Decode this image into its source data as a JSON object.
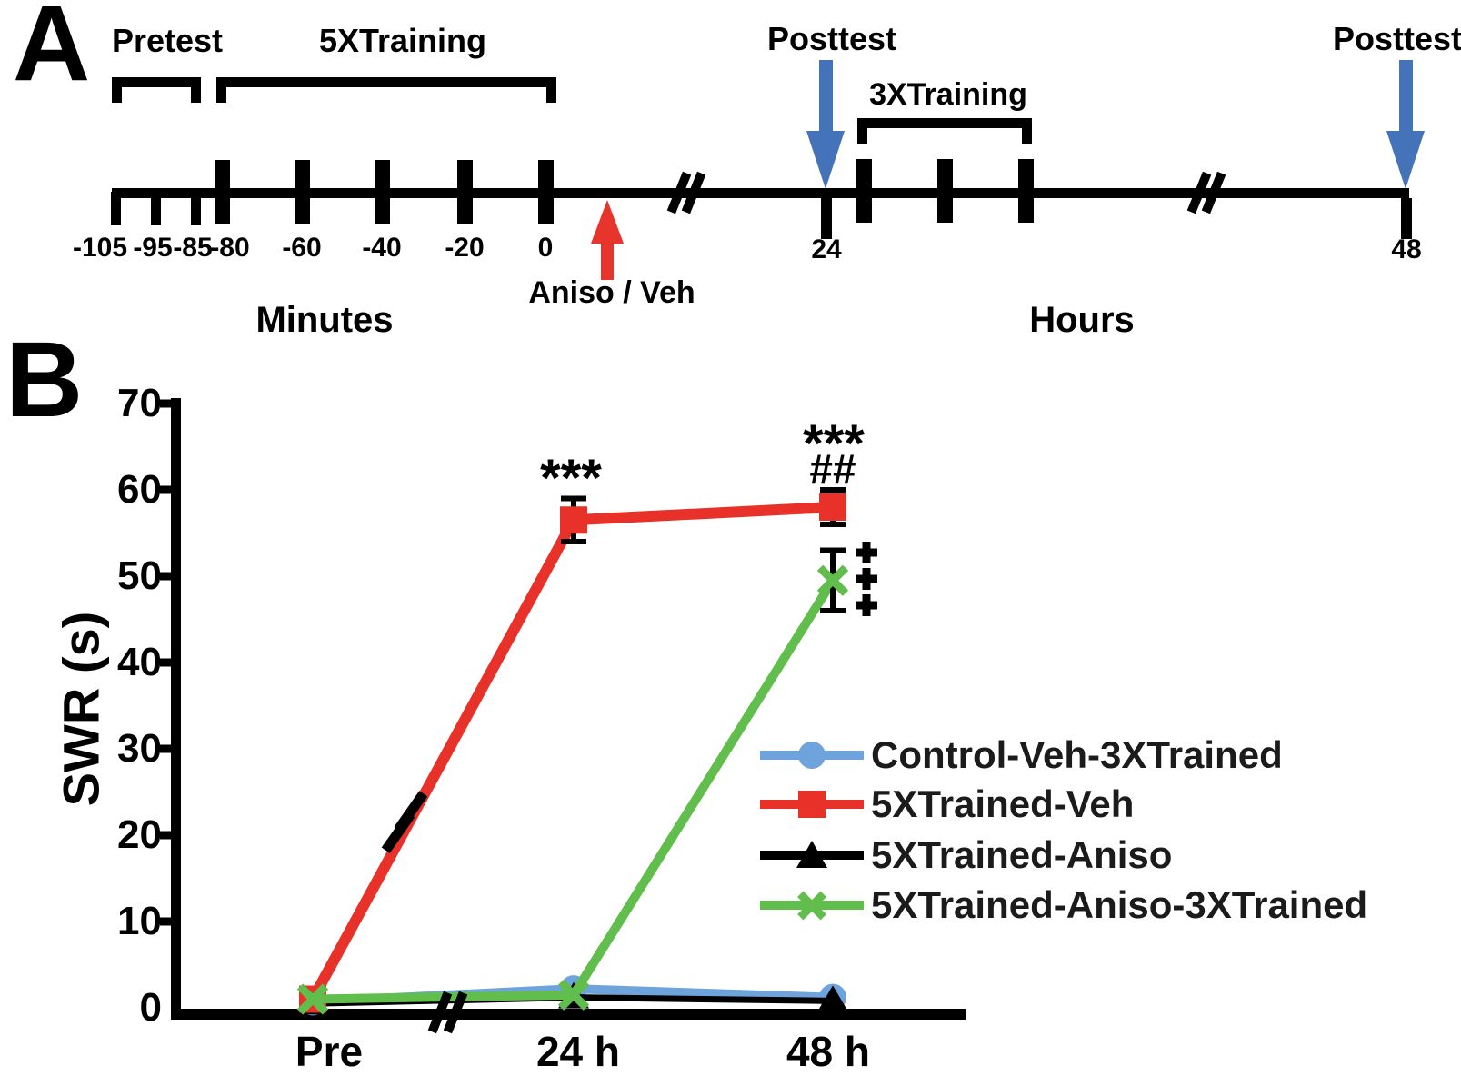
{
  "figure": {
    "panel_a_letter": "A",
    "panel_b_letter": "B"
  },
  "panel_a": {
    "pretest_label": "Pretest",
    "training5x_label": "5XTraining",
    "posttest24_label": "Posttest",
    "posttest48_label": "Posttest",
    "training3x_label": "3XTraining",
    "aniso_label": "Aniso / Veh",
    "minutes_label": "Minutes",
    "hours_label": "Hours",
    "minute_ticks": [
      "-105",
      "-95",
      "-85",
      "-80",
      "-60",
      "-40",
      "-20",
      "0"
    ],
    "hour_ticks": [
      "24",
      "48"
    ],
    "arrow_colors": {
      "treatment_arrow": "#e8352b",
      "posttest_arrow": "#4473b9"
    }
  },
  "chart_data": {
    "type": "line",
    "title": "",
    "xlabel": "",
    "ylabel": "SWR (s)",
    "categories": [
      "Pre",
      "24 h",
      "48 h"
    ],
    "ylim": [
      0,
      70
    ],
    "yticks": [
      0,
      10,
      20,
      30,
      40,
      50,
      60,
      70
    ],
    "grid": false,
    "legend_position": "inside-right",
    "axis_breaks": {
      "x_axis": "between Pre and 24 h",
      "red_series_line": "near 20 s"
    },
    "series": [
      {
        "name": "Control-Veh-3XTrained",
        "color": "#6fa3dc",
        "marker": "circle",
        "values": [
          0.7,
          2.2,
          1.2
        ],
        "errors": [
          0,
          0,
          0
        ]
      },
      {
        "name": "5XTrained-Veh",
        "color": "#e73129",
        "marker": "square",
        "values": [
          1,
          56.5,
          58
        ],
        "errors": [
          0,
          2.5,
          2
        ]
      },
      {
        "name": "5XTrained-Aniso",
        "color": "#000000",
        "marker": "triangle",
        "values": [
          0.5,
          1.2,
          0.8
        ],
        "errors": [
          0,
          0,
          0
        ]
      },
      {
        "name": "5XTrained-Aniso-3XTrained",
        "color": "#61be4c",
        "marker": "x",
        "values": [
          1,
          1.5,
          49.5
        ],
        "errors": [
          0,
          0,
          3.5
        ]
      }
    ],
    "annotations": [
      {
        "text": "***",
        "at": "24 h",
        "series": "5XTrained-Veh"
      },
      {
        "text": "***",
        "at": "48 h",
        "series": "5XTrained-Veh"
      },
      {
        "text": "##",
        "at": "48 h",
        "series": "5XTrained-Veh"
      },
      {
        "text": "+++",
        "at": "48 h",
        "series": "5XTrained-Aniso-3XTrained"
      }
    ]
  }
}
